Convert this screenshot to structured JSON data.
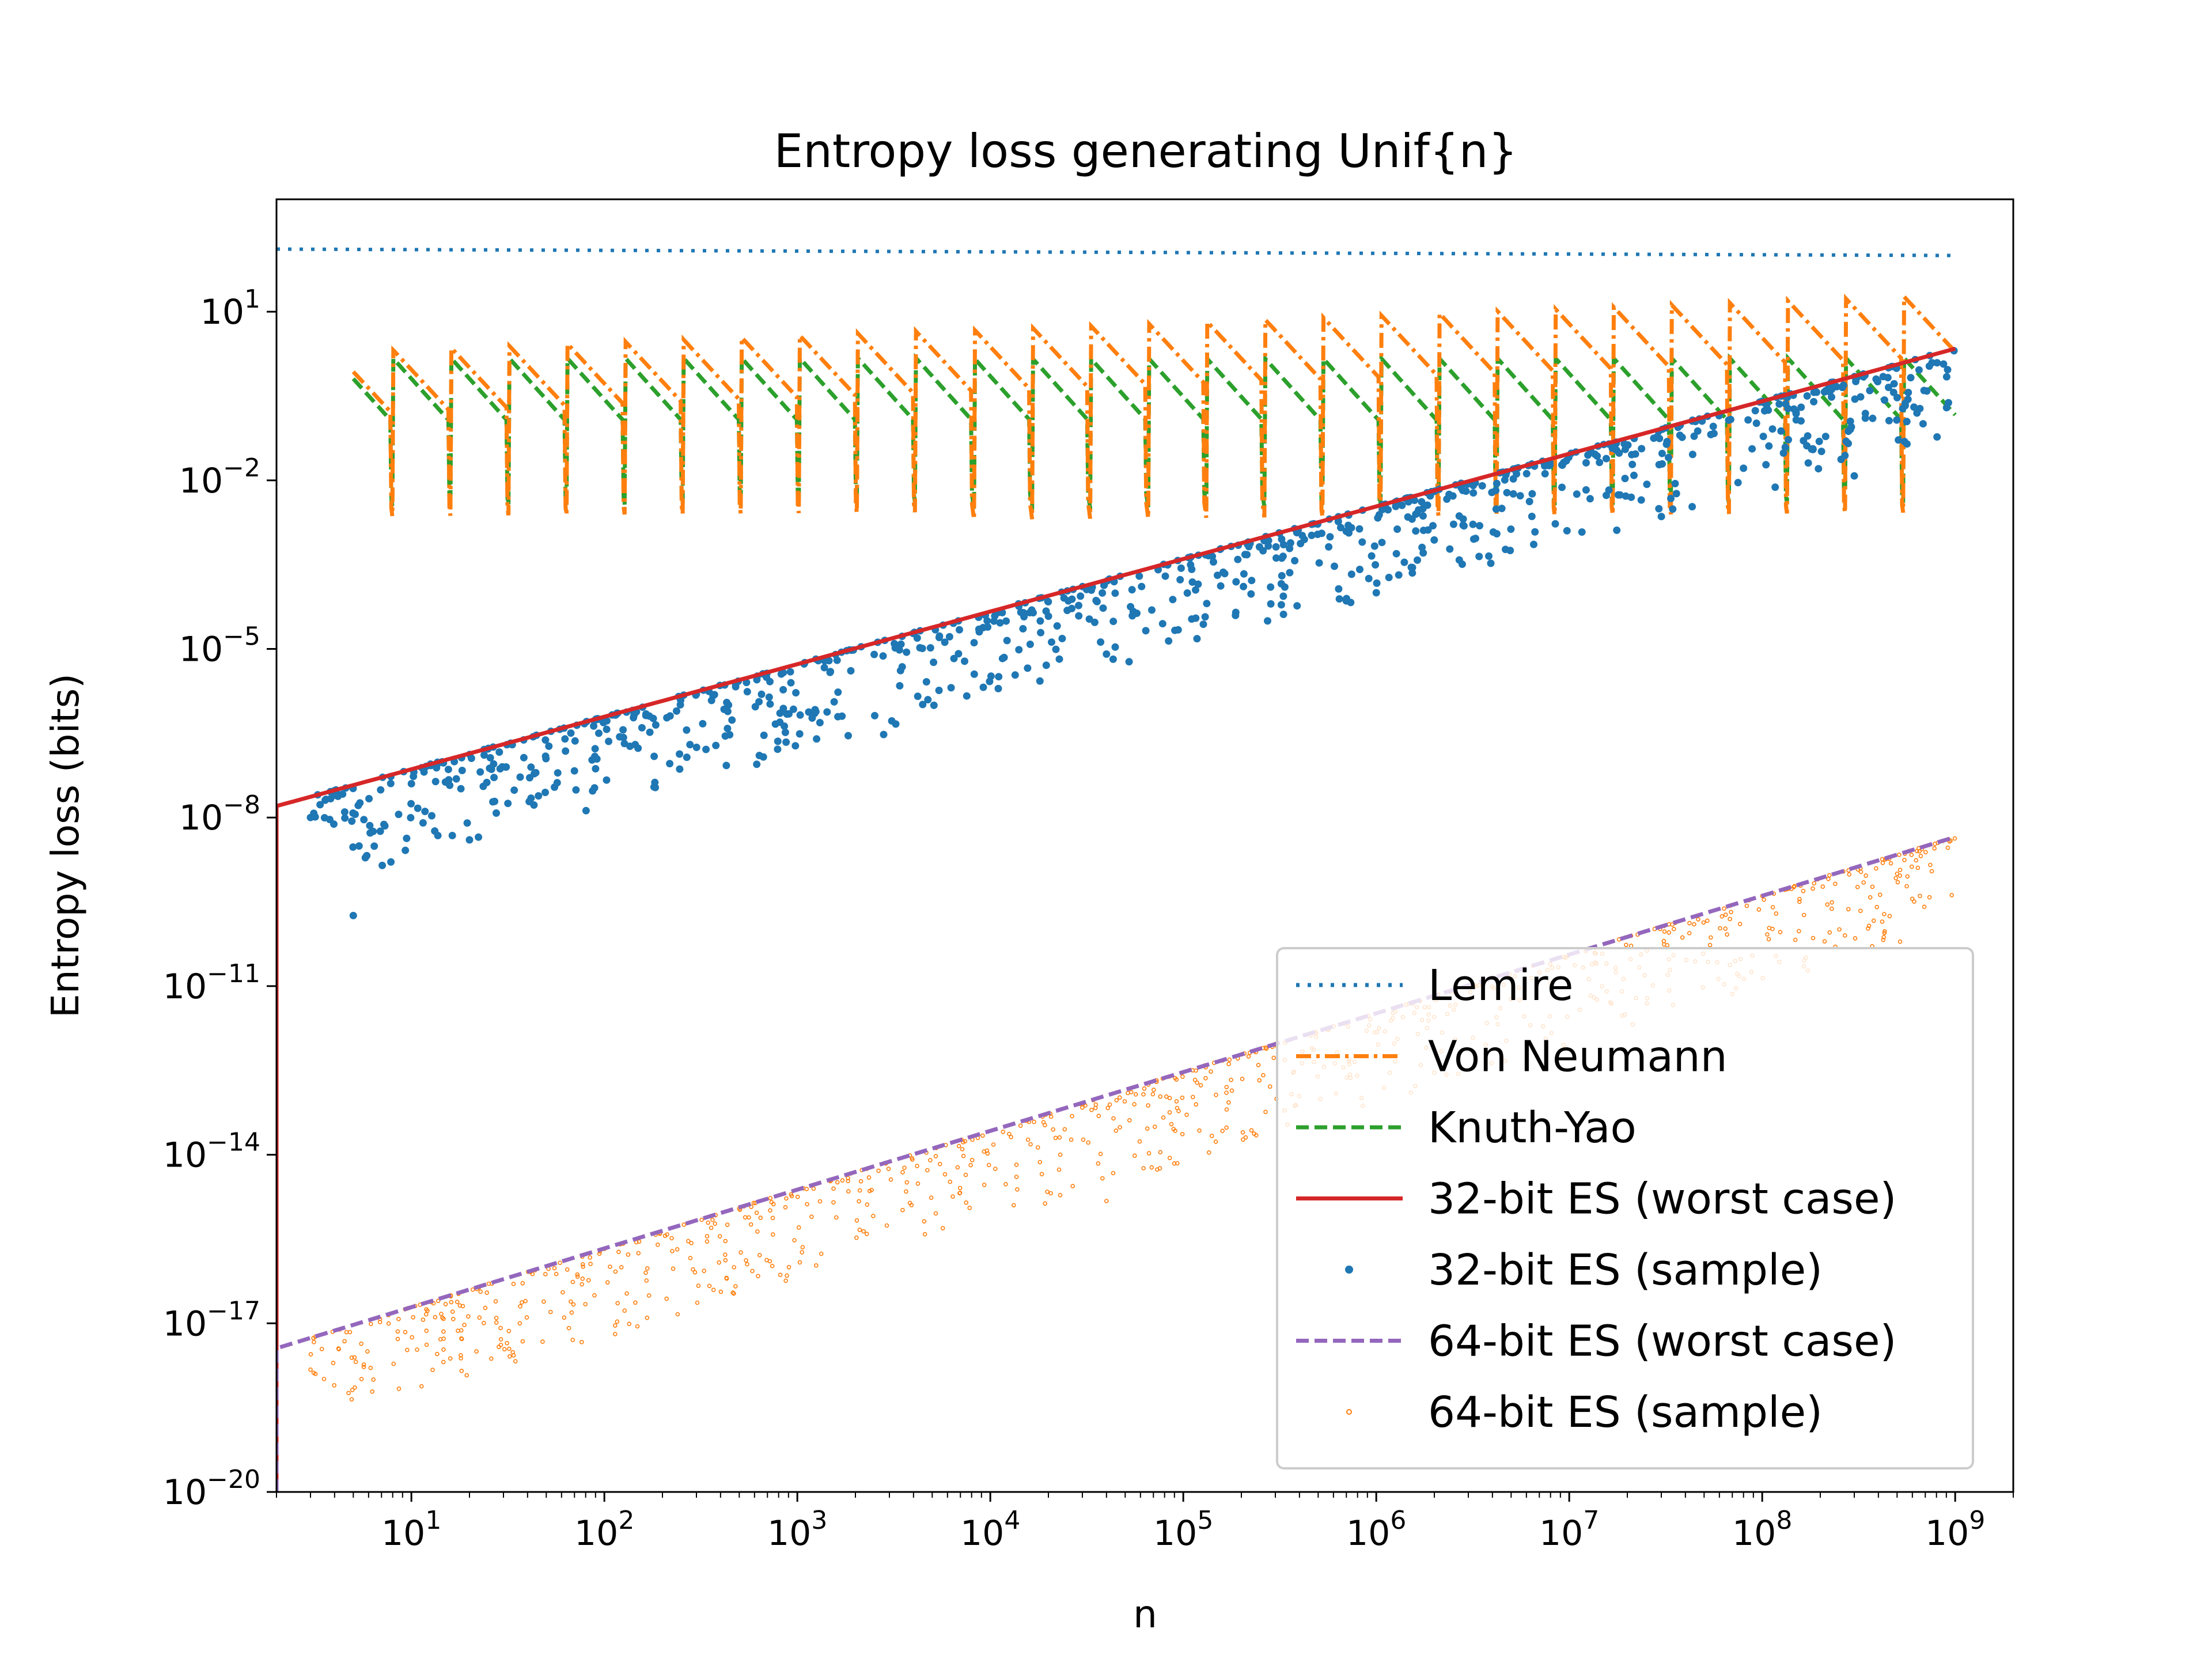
{
  "chart_data": {
    "type": "scatter",
    "title": "Entropy loss generating Unif{n}",
    "xlabel": "n",
    "ylabel": "Entropy loss (bits)",
    "x_scale": "log",
    "y_scale": "log",
    "xlim": [
      2,
      2000000000
    ],
    "ylim": [
      1e-20,
      1000
    ],
    "x_ticks": [
      {
        "value": 10,
        "mantissa": "10",
        "exponent": "1"
      },
      {
        "value": 100,
        "mantissa": "10",
        "exponent": "2"
      },
      {
        "value": 1000,
        "mantissa": "10",
        "exponent": "3"
      },
      {
        "value": 10000,
        "mantissa": "10",
        "exponent": "4"
      },
      {
        "value": 100000,
        "mantissa": "10",
        "exponent": "5"
      },
      {
        "value": 1000000,
        "mantissa": "10",
        "exponent": "6"
      },
      {
        "value": 10000000,
        "mantissa": "10",
        "exponent": "7"
      },
      {
        "value": 100000000,
        "mantissa": "10",
        "exponent": "8"
      },
      {
        "value": 1000000000,
        "mantissa": "10",
        "exponent": "9"
      }
    ],
    "y_ticks": [
      {
        "value": 10,
        "mantissa": "10",
        "exponent": "1"
      },
      {
        "value": 0.01,
        "mantissa": "10",
        "exponent": "−2"
      },
      {
        "value": 1e-05,
        "mantissa": "10",
        "exponent": "−5"
      },
      {
        "value": 1e-08,
        "mantissa": "10",
        "exponent": "−8"
      },
      {
        "value": 1e-11,
        "mantissa": "10",
        "exponent": "−11"
      },
      {
        "value": 1e-14,
        "mantissa": "10",
        "exponent": "−14"
      },
      {
        "value": 1e-17,
        "mantissa": "10",
        "exponent": "−17"
      },
      {
        "value": 1e-20,
        "mantissa": "10",
        "exponent": "−20"
      }
    ],
    "grid": false,
    "legend_position": "lower-right",
    "series": [
      {
        "name": "Lemire",
        "kind": "line",
        "style": "dotted",
        "color": "#1f77b4",
        "x": [
          2,
          1000000000
        ],
        "y": [
          130,
          100
        ]
      },
      {
        "name": "Von Neumann",
        "kind": "line",
        "style": "dashdot",
        "color": "#ff7f0e",
        "x_range": [
          5,
          1000000000
        ],
        "y_max": [
          2.0,
          20
        ],
        "y_min_dip": 0.002,
        "sawtooth_cycles_per_decade": 3.32
      },
      {
        "name": "Knuth-Yao",
        "kind": "line",
        "style": "dashed",
        "color": "#2ca02c",
        "x_range": [
          5,
          1000000000
        ],
        "y_max": [
          1.5,
          1.5
        ],
        "y_min_dip": 0.003,
        "sawtooth_cycles_per_decade": 3.32
      },
      {
        "name": "32-bit ES (worst case)",
        "kind": "line",
        "style": "solid",
        "color": "#d62728",
        "x": [
          2,
          1000000000
        ],
        "y": [
          1.6e-08,
          2.2
        ]
      },
      {
        "name": "32-bit ES (sample)",
        "kind": "scatter",
        "marker": "filled-dot",
        "color": "#1f77b4",
        "points": [
          [
            3,
            1e-08
          ],
          [
            5,
            1.8e-10
          ],
          [
            20,
            4e-09
          ],
          [
            2800,
            3e-07
          ],
          [
            1000000.0,
            0.0001
          ],
          [
            300000000.0,
            0.012
          ],
          [
            4,
            2.5e-08
          ],
          [
            10,
            4e-08
          ]
        ],
        "envelope": "below 32-bit ES (worst case)"
      },
      {
        "name": "64-bit ES (worst case)",
        "kind": "line",
        "style": "dashed",
        "color": "#9467bd",
        "x": [
          2,
          1000000000
        ],
        "y": [
          3.6e-18,
          4.5e-09
        ]
      },
      {
        "name": "64-bit ES (sample)",
        "kind": "scatter",
        "marker": "hollow-dot",
        "color": "#ff7f0e",
        "points": [
          [
            3,
            1.5e-18
          ],
          [
            40000,
            1.5e-15
          ],
          [
            500000000.0,
            1e-09
          ]
        ],
        "envelope": "below 64-bit ES (worst case)"
      }
    ]
  }
}
